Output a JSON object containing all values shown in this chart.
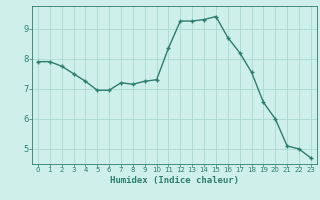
{
  "x": [
    0,
    1,
    2,
    3,
    4,
    5,
    6,
    7,
    8,
    9,
    10,
    11,
    12,
    13,
    14,
    15,
    16,
    17,
    18,
    19,
    20,
    21,
    22,
    23
  ],
  "y": [
    7.9,
    7.9,
    7.75,
    7.5,
    7.25,
    6.95,
    6.95,
    7.2,
    7.15,
    7.25,
    7.3,
    8.35,
    9.25,
    9.25,
    9.3,
    9.4,
    8.7,
    8.2,
    7.55,
    6.55,
    6.0,
    5.1,
    5.0,
    4.7
  ],
  "xlabel": "Humidex (Indice chaleur)",
  "xlim": [
    -0.5,
    23.5
  ],
  "ylim": [
    4.5,
    9.75
  ],
  "yticks": [
    5,
    6,
    7,
    8,
    9
  ],
  "xticks": [
    0,
    1,
    2,
    3,
    4,
    5,
    6,
    7,
    8,
    9,
    10,
    11,
    12,
    13,
    14,
    15,
    16,
    17,
    18,
    19,
    20,
    21,
    22,
    23
  ],
  "line_color": "#2d7d6e",
  "bg_color": "#cff0ea",
  "grid_color": "#aad9cf",
  "label_color": "#2d7d6e",
  "tick_color": "#2d7d6e",
  "xlabel_fontsize": 6.5,
  "tick_fontsize_x": 5.0,
  "tick_fontsize_y": 6.0,
  "line_width": 1.0,
  "marker_size": 3.5
}
